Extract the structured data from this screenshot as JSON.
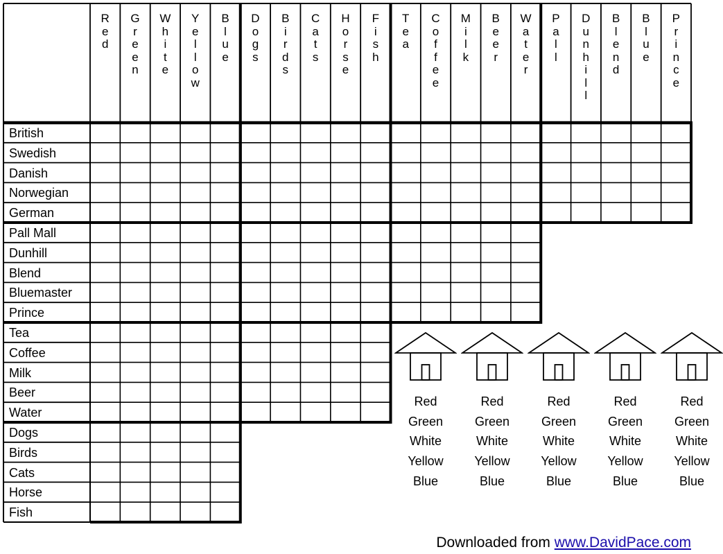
{
  "column_groups": [
    {
      "name": "colors",
      "headers": [
        "Red",
        "Green",
        "White",
        "Yellow",
        "Blue"
      ]
    },
    {
      "name": "pets",
      "headers": [
        "Dogs",
        "Birds",
        "Cats",
        "Horse",
        "Fish"
      ]
    },
    {
      "name": "drinks",
      "headers": [
        "Tea",
        "Coffee",
        "Milk",
        "Beer",
        "Water"
      ]
    },
    {
      "name": "cigarettes",
      "headers": [
        "Pall",
        "Dunhill",
        "Blend",
        "Blue",
        "Prince"
      ]
    }
  ],
  "row_groups": [
    {
      "name": "nationalities",
      "labels": [
        "British",
        "Swedish",
        "Danish",
        "Norwegian",
        "German"
      ]
    },
    {
      "name": "cigarettes",
      "labels": [
        "Pall Mall",
        "Dunhill",
        "Blend",
        "Bluemaster",
        "Prince"
      ]
    },
    {
      "name": "drinks",
      "labels": [
        "Tea",
        "Coffee",
        "Milk",
        "Beer",
        "Water"
      ]
    },
    {
      "name": "pets",
      "labels": [
        "Dogs",
        "Birds",
        "Cats",
        "Horse",
        "Fish"
      ]
    }
  ],
  "houses": [
    {
      "options": [
        "Red",
        "Green",
        "White",
        "Yellow",
        "Blue"
      ]
    },
    {
      "options": [
        "Red",
        "Green",
        "White",
        "Yellow",
        "Blue"
      ]
    },
    {
      "options": [
        "Red",
        "Green",
        "White",
        "Yellow",
        "Blue"
      ]
    },
    {
      "options": [
        "Red",
        "Green",
        "White",
        "Yellow",
        "Blue"
      ]
    },
    {
      "options": [
        "Red",
        "Green",
        "White",
        "Yellow",
        "Blue"
      ]
    }
  ],
  "footer": {
    "prefix": "Downloaded from ",
    "link": "www.DavidPace.com"
  },
  "icons": {
    "house": "house-icon"
  },
  "colors": {
    "line": "#000000",
    "link": "#1a0dab"
  }
}
